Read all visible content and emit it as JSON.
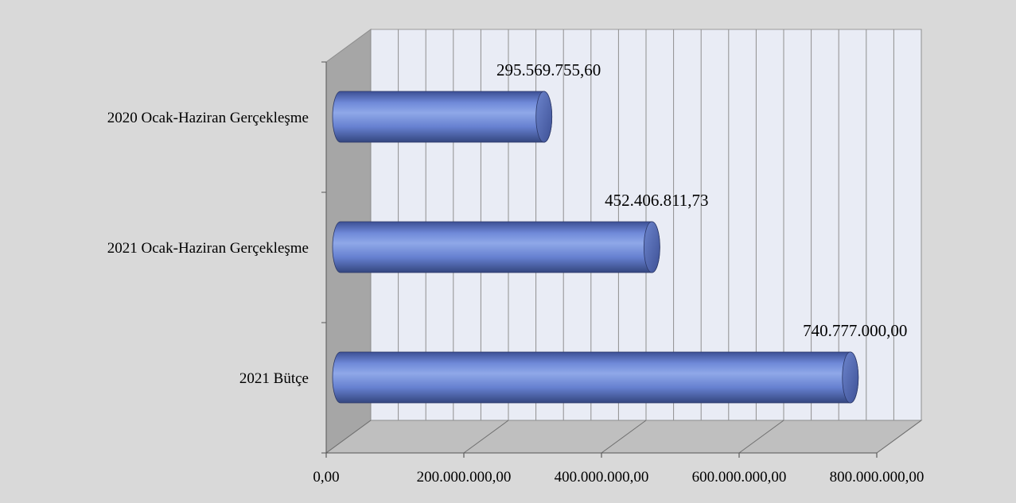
{
  "chart_data": {
    "type": "bar",
    "orientation": "horizontal",
    "style": "3d-cylinder",
    "categories": [
      "2020 Ocak-Haziran Gerçekleşme",
      "2021 Ocak-Haziran Gerçekleşme",
      "2021 Bütçe"
    ],
    "values": [
      295569755.6,
      452406811.73,
      740777000.0
    ],
    "data_labels": [
      "295.569.755,60",
      "452.406.811,73",
      "740.777.000,00"
    ],
    "x_ticks": [
      {
        "value": 0,
        "label": "0,00"
      },
      {
        "value": 200000000,
        "label": "200.000.000,00"
      },
      {
        "value": 400000000,
        "label": "400.000.000,00"
      },
      {
        "value": 600000000,
        "label": "600.000.000,00"
      },
      {
        "value": 800000000,
        "label": "800.000.000,00"
      }
    ],
    "xlim": [
      0,
      800000000
    ],
    "grid": true,
    "legend": "none",
    "title": "",
    "xlabel": "",
    "ylabel": "",
    "colors": {
      "background": "#d9d9d9",
      "wall": "#e9ecf5",
      "side_wall": "#a6a6a6",
      "floor": "#bfbfbf",
      "bar_light": "#8fa8e8",
      "bar_mid": "#6680d0",
      "bar_dark": "#3c4f94"
    }
  }
}
